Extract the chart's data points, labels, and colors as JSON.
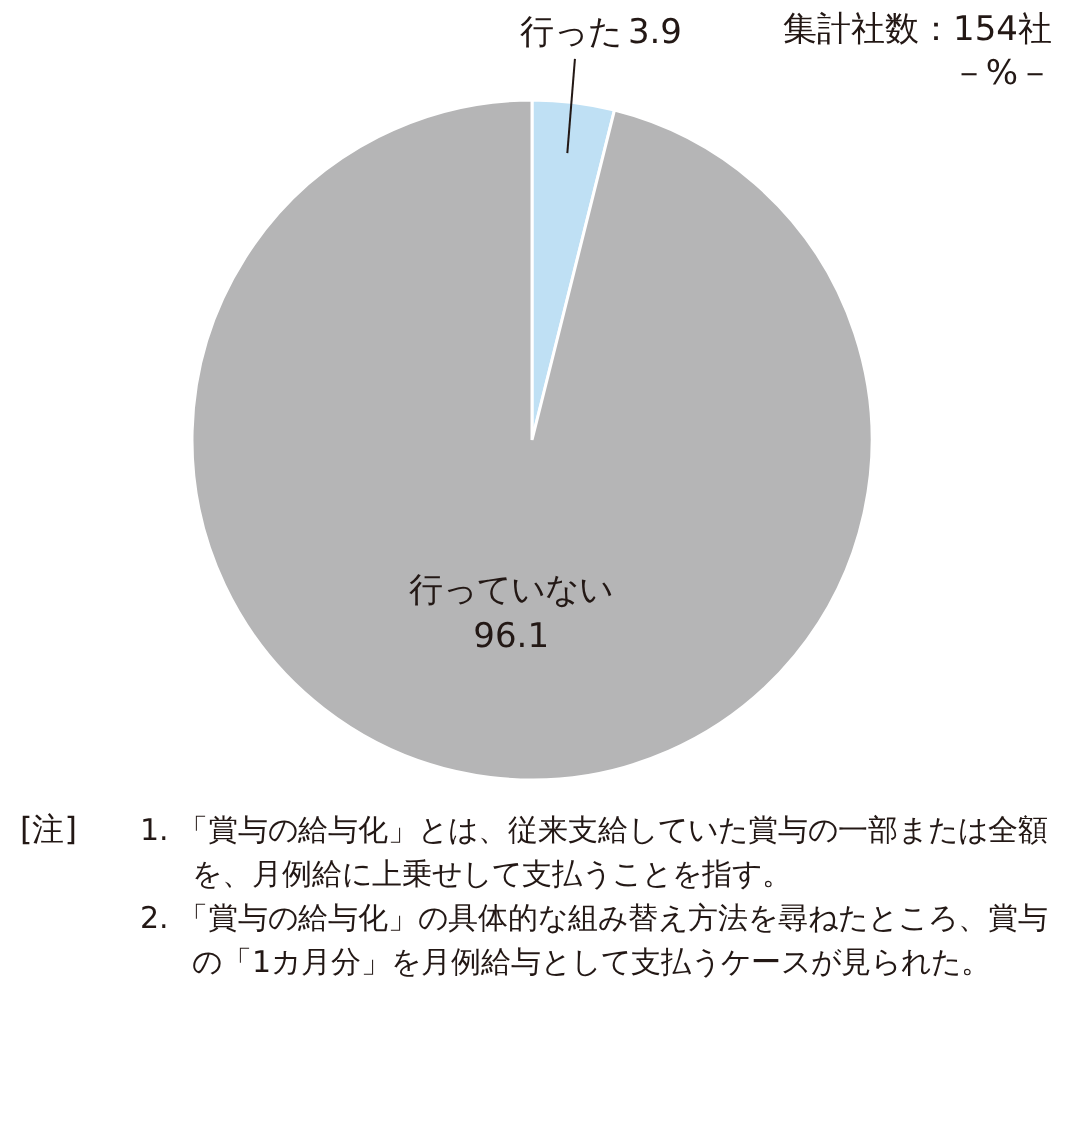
{
  "chart_data": {
    "type": "pie",
    "categories": [
      "行った",
      "行っていない"
    ],
    "values": [
      3.9,
      96.1
    ],
    "colors": [
      "#bfe0f4",
      "#b5b5b6"
    ],
    "data_labels": true,
    "annotations": [
      "集計社数：154社",
      "－%－",
      "[注]",
      "1. 「賞与の給与化」とは、従来支給していた賞与の一部または全額を、月例給に上乗せして支払うことを指す。",
      "2. 「賞与の給与化」の具体的な組み替え方法を尋ねたところ、賞与の「1カ月分」を月例給与として支払うケースが見られた。"
    ]
  }
}
